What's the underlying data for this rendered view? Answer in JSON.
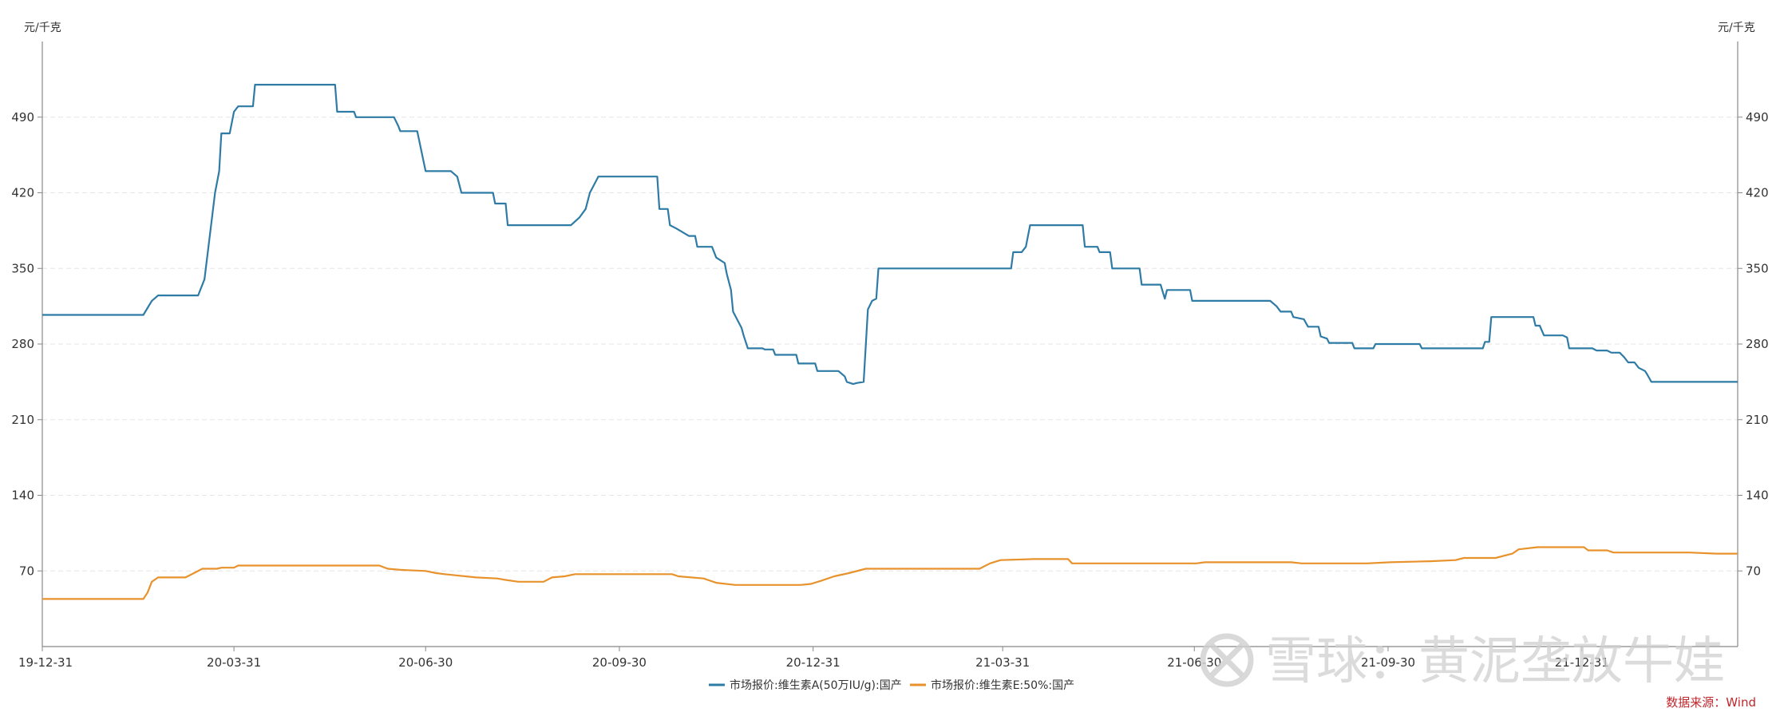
{
  "chart_data": {
    "type": "line",
    "unit_left": "元/千克",
    "unit_right": "元/千克",
    "ylim": [
      0,
      560
    ],
    "y_ticks": [
      70,
      140,
      210,
      280,
      350,
      420,
      490
    ],
    "x_tick_labels": [
      "19-12-31",
      "20-03-31",
      "20-06-30",
      "20-09-30",
      "20-12-31",
      "21-03-31",
      "21-06-30",
      "21-09-30",
      "21-12-31"
    ],
    "x_range": [
      "2019-12-31",
      "2022-03-15"
    ],
    "grid": true,
    "legend_position": "bottom",
    "series": [
      {
        "name": "市场报价:维生素A(50万IU/g):国产",
        "color": "#2e7ba6",
        "points": [
          [
            "2019-12-31",
            307
          ],
          [
            "2020-02-17",
            307
          ],
          [
            "2020-02-21",
            320
          ],
          [
            "2020-02-24",
            325
          ],
          [
            "2020-03-14",
            325
          ],
          [
            "2020-03-17",
            340
          ],
          [
            "2020-03-22",
            420
          ],
          [
            "2020-03-24",
            440
          ],
          [
            "2020-03-25",
            475
          ],
          [
            "2020-03-29",
            475
          ],
          [
            "2020-03-31",
            495
          ],
          [
            "2020-04-02",
            500
          ],
          [
            "2020-04-09",
            500
          ],
          [
            "2020-04-10",
            520
          ],
          [
            "2020-05-18",
            520
          ],
          [
            "2020-05-19",
            495
          ],
          [
            "2020-05-27",
            495
          ],
          [
            "2020-05-28",
            490
          ],
          [
            "2020-06-15",
            490
          ],
          [
            "2020-06-17",
            482
          ],
          [
            "2020-06-18",
            477
          ],
          [
            "2020-06-26",
            477
          ],
          [
            "2020-06-30",
            440
          ],
          [
            "2020-07-12",
            440
          ],
          [
            "2020-07-15",
            435
          ],
          [
            "2020-07-17",
            420
          ],
          [
            "2020-08-01",
            420
          ],
          [
            "2020-08-02",
            410
          ],
          [
            "2020-08-07",
            410
          ],
          [
            "2020-08-08",
            390
          ],
          [
            "2020-09-07",
            390
          ],
          [
            "2020-09-11",
            397
          ],
          [
            "2020-09-14",
            405
          ],
          [
            "2020-09-16",
            420
          ],
          [
            "2020-09-20",
            435
          ],
          [
            "2020-10-18",
            435
          ],
          [
            "2020-10-19",
            405
          ],
          [
            "2020-10-23",
            405
          ],
          [
            "2020-10-24",
            390
          ],
          [
            "2020-10-27",
            387
          ],
          [
            "2020-11-02",
            380
          ],
          [
            "2020-11-05",
            380
          ],
          [
            "2020-11-06",
            370
          ],
          [
            "2020-11-13",
            370
          ],
          [
            "2020-11-15",
            360
          ],
          [
            "2020-11-19",
            355
          ],
          [
            "2020-11-20",
            345
          ],
          [
            "2020-11-22",
            330
          ],
          [
            "2020-11-23",
            310
          ],
          [
            "2020-11-27",
            295
          ],
          [
            "2020-11-28",
            288
          ],
          [
            "2020-11-30",
            276
          ],
          [
            "2020-12-07",
            276
          ],
          [
            "2020-12-08",
            275
          ],
          [
            "2020-12-12",
            275
          ],
          [
            "2020-12-13",
            270
          ],
          [
            "2020-12-23",
            270
          ],
          [
            "2020-12-24",
            262
          ],
          [
            "2021-01-01",
            262
          ],
          [
            "2021-01-02",
            255
          ],
          [
            "2021-01-12",
            255
          ],
          [
            "2021-01-15",
            250
          ],
          [
            "2021-01-16",
            245
          ],
          [
            "2021-01-19",
            243
          ],
          [
            "2021-01-21",
            244
          ],
          [
            "2021-01-24",
            245
          ],
          [
            "2021-01-26",
            312
          ],
          [
            "2021-01-28",
            320
          ],
          [
            "2021-01-30",
            322
          ],
          [
            "2021-01-31",
            350
          ],
          [
            "2021-04-04",
            350
          ],
          [
            "2021-04-05",
            365
          ],
          [
            "2021-04-09",
            365
          ],
          [
            "2021-04-11",
            370
          ],
          [
            "2021-04-13",
            390
          ],
          [
            "2021-05-08",
            390
          ],
          [
            "2021-05-09",
            370
          ],
          [
            "2021-05-15",
            370
          ],
          [
            "2021-05-16",
            365
          ],
          [
            "2021-05-21",
            365
          ],
          [
            "2021-05-22",
            350
          ],
          [
            "2021-06-04",
            350
          ],
          [
            "2021-06-05",
            335
          ],
          [
            "2021-06-14",
            335
          ],
          [
            "2021-06-16",
            322
          ],
          [
            "2021-06-17",
            330
          ],
          [
            "2021-06-28",
            330
          ],
          [
            "2021-06-29",
            320
          ],
          [
            "2021-08-05",
            320
          ],
          [
            "2021-08-08",
            315
          ],
          [
            "2021-08-10",
            310
          ],
          [
            "2021-08-15",
            310
          ],
          [
            "2021-08-16",
            305
          ],
          [
            "2021-08-21",
            303
          ],
          [
            "2021-08-23",
            296
          ],
          [
            "2021-08-28",
            296
          ],
          [
            "2021-08-29",
            287
          ],
          [
            "2021-09-01",
            285
          ],
          [
            "2021-09-02",
            281
          ],
          [
            "2021-09-13",
            281
          ],
          [
            "2021-09-14",
            276
          ],
          [
            "2021-09-23",
            276
          ],
          [
            "2021-09-24",
            280
          ],
          [
            "2021-10-15",
            280
          ],
          [
            "2021-10-16",
            276
          ],
          [
            "2021-11-14",
            276
          ],
          [
            "2021-11-15",
            282
          ],
          [
            "2021-11-17",
            282
          ],
          [
            "2021-11-18",
            305
          ],
          [
            "2021-12-08",
            305
          ],
          [
            "2021-12-09",
            297
          ],
          [
            "2021-12-11",
            297
          ],
          [
            "2021-12-13",
            288
          ],
          [
            "2021-12-22",
            288
          ],
          [
            "2021-12-24",
            286
          ],
          [
            "2021-12-25",
            276
          ],
          [
            "2022-01-05",
            276
          ],
          [
            "2022-01-07",
            274
          ],
          [
            "2022-01-12",
            274
          ],
          [
            "2022-01-14",
            272
          ],
          [
            "2022-01-18",
            272
          ],
          [
            "2022-01-20",
            268
          ],
          [
            "2022-01-22",
            263
          ],
          [
            "2022-01-25",
            263
          ],
          [
            "2022-01-27",
            258
          ],
          [
            "2022-01-30",
            255
          ],
          [
            "2022-01-31",
            252
          ],
          [
            "2022-02-02",
            245
          ],
          [
            "2022-03-15",
            245
          ]
        ]
      },
      {
        "name": "市场报价:维生素E:50%:国产",
        "color": "#e8922c",
        "points": [
          [
            "2019-12-31",
            44
          ],
          [
            "2020-02-17",
            44
          ],
          [
            "2020-02-19",
            50
          ],
          [
            "2020-02-21",
            60
          ],
          [
            "2020-02-24",
            64
          ],
          [
            "2020-03-08",
            64
          ],
          [
            "2020-03-12",
            68
          ],
          [
            "2020-03-16",
            72
          ],
          [
            "2020-03-23",
            72
          ],
          [
            "2020-03-25",
            73
          ],
          [
            "2020-03-31",
            73
          ],
          [
            "2020-04-02",
            75
          ],
          [
            "2020-06-08",
            75
          ],
          [
            "2020-06-12",
            72
          ],
          [
            "2020-06-18",
            71
          ],
          [
            "2020-06-30",
            70
          ],
          [
            "2020-07-05",
            68
          ],
          [
            "2020-07-09",
            67
          ],
          [
            "2020-07-14",
            66
          ],
          [
            "2020-07-24",
            64
          ],
          [
            "2020-08-03",
            63
          ],
          [
            "2020-08-06",
            62
          ],
          [
            "2020-08-13",
            60
          ],
          [
            "2020-08-25",
            60
          ],
          [
            "2020-08-29",
            64
          ],
          [
            "2020-09-04",
            65
          ],
          [
            "2020-09-09",
            67
          ],
          [
            "2020-10-25",
            67
          ],
          [
            "2020-10-28",
            65
          ],
          [
            "2020-11-09",
            63
          ],
          [
            "2020-11-15",
            59
          ],
          [
            "2020-11-24",
            57
          ],
          [
            "2020-12-25",
            57
          ],
          [
            "2020-12-30",
            58
          ],
          [
            "2021-01-04",
            61
          ],
          [
            "2021-01-10",
            65
          ],
          [
            "2021-01-17",
            68
          ],
          [
            "2021-01-25",
            72
          ],
          [
            "2021-03-20",
            72
          ],
          [
            "2021-03-25",
            77
          ],
          [
            "2021-03-30",
            80
          ],
          [
            "2021-04-15",
            81
          ],
          [
            "2021-05-01",
            81
          ],
          [
            "2021-05-03",
            77
          ],
          [
            "2021-07-01",
            77
          ],
          [
            "2021-07-05",
            78
          ],
          [
            "2021-08-15",
            78
          ],
          [
            "2021-08-20",
            77
          ],
          [
            "2021-09-20",
            77
          ],
          [
            "2021-10-01",
            78
          ],
          [
            "2021-10-20",
            79
          ],
          [
            "2021-11-01",
            80
          ],
          [
            "2021-11-05",
            82
          ],
          [
            "2021-11-20",
            82
          ],
          [
            "2021-11-28",
            86
          ],
          [
            "2021-12-01",
            90
          ],
          [
            "2021-12-10",
            92
          ],
          [
            "2022-01-01",
            92
          ],
          [
            "2022-01-03",
            89
          ],
          [
            "2022-01-12",
            89
          ],
          [
            "2022-01-15",
            87
          ],
          [
            "2022-02-20",
            87
          ],
          [
            "2022-03-05",
            86
          ],
          [
            "2022-03-15",
            86
          ]
        ]
      }
    ]
  },
  "footer": {
    "source_text": "数据来源：Wind",
    "watermark_text": "雪球：黄泥垄放牛娃"
  },
  "colors": {
    "axis": "#888888",
    "grid": "#e6e6e6",
    "source": "#c0272d"
  }
}
